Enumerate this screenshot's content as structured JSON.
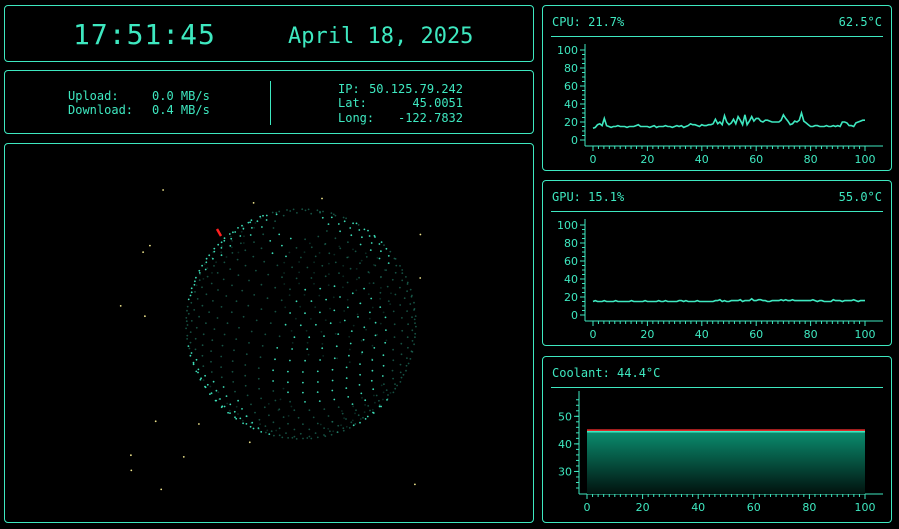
{
  "clock": {
    "time": "17:51:45",
    "date": "April 18, 2025"
  },
  "network": {
    "upload_label": "Upload:",
    "upload_value": "0.0 MB/s",
    "download_label": "Download:",
    "download_value": "0.4 MB/s",
    "ip_label": "IP:",
    "ip_value": "50.125.79.242",
    "lat_label": "Lat:",
    "lat_value": "45.0051",
    "long_label": "Long:",
    "long_value": "-122.7832"
  },
  "globe": {
    "dot_color": "#3ee8c0",
    "marker_color": "#ff2020",
    "star_color": "#f0e68c"
  },
  "colors": {
    "accent": "#3ee8c0",
    "background": "#000000",
    "limit_line": "#ff3030"
  },
  "chart_data": [
    {
      "id": "cpu",
      "type": "line",
      "title": "CPU: 21.7%",
      "temp": "62.5°C",
      "xlim": [
        0,
        100
      ],
      "ylim": [
        0,
        100
      ],
      "x_ticks": [
        "0",
        "20",
        "40",
        "60",
        "80",
        "100"
      ],
      "y_ticks": [
        "0",
        "20",
        "40",
        "60",
        "80",
        "100"
      ],
      "series": [
        {
          "values": [
            13,
            14,
            17,
            18,
            16,
            24,
            16,
            15,
            14,
            15,
            15,
            16,
            15,
            15,
            15,
            14,
            15,
            15,
            15,
            16,
            17,
            15,
            15,
            15,
            15,
            14,
            15,
            16,
            14,
            15,
            15,
            15,
            16,
            15,
            15,
            14,
            15,
            16,
            15,
            16,
            14,
            15,
            16,
            18,
            17,
            17,
            16,
            15,
            17,
            16,
            16,
            17,
            17,
            18,
            23,
            18,
            20,
            17,
            27,
            20,
            17,
            19,
            23,
            18,
            26,
            22,
            17,
            28,
            17,
            21,
            26,
            21,
            24,
            24,
            21,
            20,
            22,
            22,
            21,
            20,
            20,
            20,
            20,
            22,
            28,
            24,
            21,
            17,
            18,
            21,
            20,
            22,
            30,
            21,
            19,
            17,
            15,
            15,
            16,
            16,
            15,
            15,
            15,
            16,
            15,
            15,
            16,
            15,
            16,
            15,
            20,
            20,
            19,
            16,
            16,
            15,
            19,
            20,
            21,
            22,
            22
          ]
        }
      ]
    },
    {
      "id": "gpu",
      "type": "line",
      "title": "GPU: 15.1%",
      "temp": "55.0°C",
      "xlim": [
        0,
        100
      ],
      "ylim": [
        0,
        100
      ],
      "x_ticks": [
        "0",
        "20",
        "40",
        "60",
        "80",
        "100"
      ],
      "y_ticks": [
        "0",
        "20",
        "40",
        "60",
        "80",
        "100"
      ],
      "series": [
        {
          "values": [
            15,
            16,
            15,
            15,
            15,
            16,
            15,
            15,
            15,
            15,
            16,
            15,
            15,
            15,
            15,
            15,
            15,
            16,
            15,
            15,
            15,
            15,
            15,
            16,
            15,
            15,
            15,
            15,
            15,
            16,
            15,
            15,
            16,
            15,
            15,
            15,
            15,
            15,
            16,
            16,
            15,
            16,
            15,
            15,
            15,
            15,
            16,
            15,
            15,
            15,
            15,
            15,
            15,
            15,
            16,
            16,
            17,
            15,
            16,
            15,
            15,
            16,
            16,
            16,
            16,
            17,
            15,
            16,
            16,
            16,
            18,
            16,
            16,
            17,
            17,
            16,
            16,
            15,
            15,
            16,
            16,
            16,
            16,
            17,
            16,
            17,
            16,
            16,
            17,
            16,
            16,
            16,
            16,
            16,
            16,
            16,
            16,
            17,
            16,
            15,
            16,
            16,
            15,
            15,
            15,
            15,
            17,
            16,
            16,
            16,
            15,
            16,
            16,
            16,
            16,
            17,
            16,
            15,
            16,
            16,
            16
          ]
        }
      ]
    },
    {
      "id": "coolant",
      "type": "area",
      "title": "Coolant: 44.4°C",
      "xlim": [
        0,
        100
      ],
      "ylim": [
        24,
        57
      ],
      "x_ticks": [
        "0",
        "20",
        "40",
        "60",
        "80",
        "100"
      ],
      "y_ticks": [
        "30",
        "40",
        "50"
      ],
      "limit_value": 45,
      "series": [
        {
          "values": [
            44.4,
            44.4
          ]
        }
      ]
    }
  ]
}
